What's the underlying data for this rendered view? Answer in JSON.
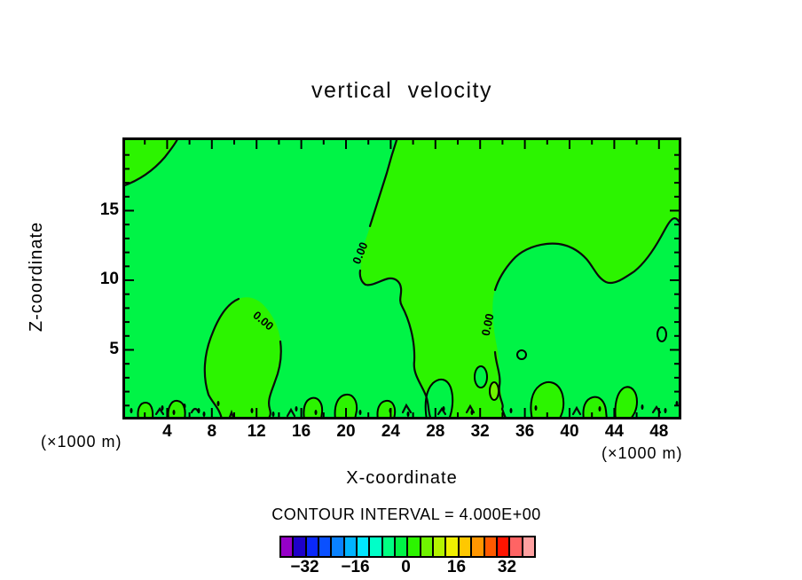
{
  "title": "vertical velocity",
  "axes": {
    "x_label": "X-coordinate",
    "z_label": "Z-coordinate",
    "x_unit": "(×1000 m)",
    "z_unit": "(×1000 m)",
    "x_ticks": [
      4,
      8,
      12,
      16,
      20,
      24,
      28,
      32,
      36,
      40,
      44,
      48
    ],
    "z_ticks": [
      5,
      10,
      15
    ]
  },
  "contour_label": "0.00",
  "footer": {
    "interval_text": "CONTOUR INTERVAL = 4.000E+00"
  },
  "colorbar": {
    "tick_values": [
      -32,
      -16,
      0,
      16,
      32
    ],
    "min": -40,
    "max": 40,
    "step": 4,
    "colors": [
      "#9600C8",
      "#1E00C8",
      "#0A28FA",
      "#0A50FF",
      "#0A82FF",
      "#00B4FF",
      "#00E6FF",
      "#00FFC8",
      "#00FF82",
      "#00F446",
      "#2CF400",
      "#70F400",
      "#B4F400",
      "#F0F000",
      "#FFC800",
      "#FF9600",
      "#FF5A00",
      "#FF1400",
      "#FF6464",
      "#FFA0A0"
    ]
  },
  "chart_data": {
    "type": "heatmap",
    "subtype": "filled-contour",
    "title": "vertical velocity",
    "xlabel": "X-coordinate",
    "ylabel": "Z-coordinate",
    "x_unit": "(×1000 m)",
    "y_unit": "(×1000 m)",
    "x_range": [
      0,
      50
    ],
    "z_range": [
      0,
      20.25
    ],
    "x_major_tick_step": 4,
    "x_minor_tick_step": 2,
    "z_major_tick_step": 5,
    "z_minor_tick_step": 1,
    "contour_interval": 4.0,
    "labeled_contour_level": 0.0,
    "contour_label_text": "0.00",
    "colorbar_levels": [
      -40,
      -36,
      -32,
      -28,
      -24,
      -20,
      -16,
      -12,
      -8,
      -4,
      0,
      4,
      8,
      12,
      16,
      20,
      24,
      28,
      32,
      36,
      40
    ],
    "colorbar_tick_labels": [
      "-32",
      "-16",
      "0",
      "16",
      "32"
    ],
    "colorbar_colors": [
      "#9600C8",
      "#1E00C8",
      "#0A28FA",
      "#0A50FF",
      "#0A82FF",
      "#00B4FF",
      "#00E6FF",
      "#00FFC8",
      "#00FF82",
      "#00F446",
      "#2CF400",
      "#70F400",
      "#B4F400",
      "#F0F000",
      "#FFC800",
      "#FF9600",
      "#FF5A00",
      "#FF1400",
      "#FF6464",
      "#FFA0A0"
    ],
    "negative_band_color": "#00F446",
    "positive_band_color": "#2CF400",
    "observations": {
      "visible_levels_drawn": [
        "0.00"
      ],
      "field_note": "Field values lie almost everywhere between -4 and +4 m/s (only the two central green bands appear, plus one tiny +4..+8 patch near x=33, z=2).",
      "zero_contour_features": [
        "small positive pocket in top-left corner (x<5.5, z>16.5)",
        "large positive region right of a contour entering top edge near x=24.6, labeled 0.00 near (x=21.5, z=12), extending to the right edge above z~10 and down to the surface between x~27 and x~34",
        "closed positive blob on the left labeled 0.00 spanning x~7..14, z~1..9",
        "second 0.00 label on the descending contour near x=33, z~8",
        "noisy alternating small positive/negative cells along the lowest ~2 km of the domain"
      ]
    }
  }
}
